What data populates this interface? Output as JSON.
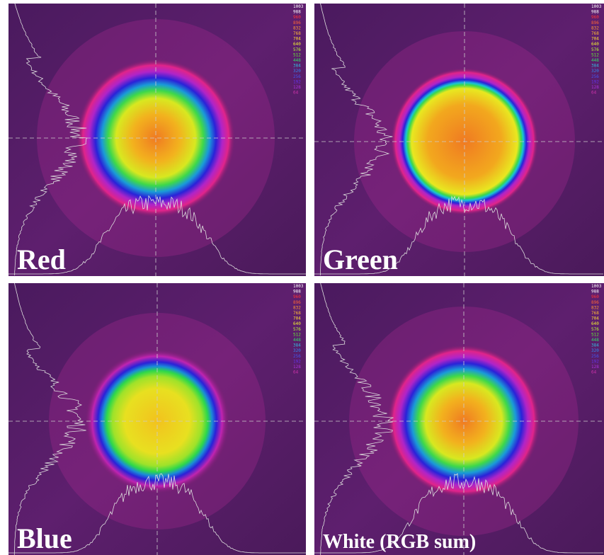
{
  "panels": [
    {
      "label": "Red"
    },
    {
      "label": "Green"
    },
    {
      "label": "Blue"
    },
    {
      "label": "White (RGB sum)"
    }
  ],
  "scale_labels": [
    "1003",
    "988",
    "960",
    "896",
    "832",
    "768",
    "704",
    "640",
    "576",
    "512",
    "448",
    "384",
    "320",
    "256",
    "192",
    "128",
    "64"
  ]
}
